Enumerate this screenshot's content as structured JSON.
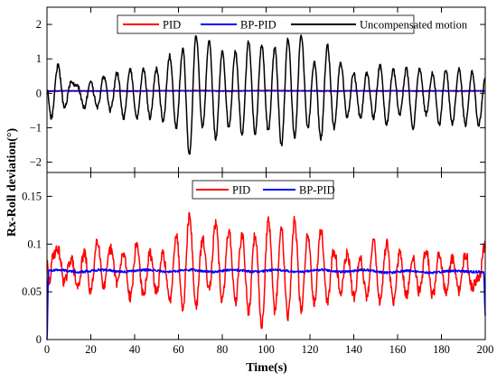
{
  "chart_data": [
    {
      "type": "line",
      "panel": "top",
      "xlim": [
        0,
        200
      ],
      "ylim": [
        -2.3,
        2.5
      ],
      "xticks": [
        0,
        20,
        40,
        60,
        80,
        100,
        120,
        140,
        160,
        180,
        200
      ],
      "yticks": [
        -2,
        -1,
        0,
        1,
        2
      ],
      "ytick_labels": [
        "−2",
        "−1",
        "0",
        "1",
        "2"
      ],
      "legend_position": "top-center",
      "grid": false,
      "series": [
        {
          "name": "PID",
          "color": "#ff0000",
          "x": [
            0,
            10,
            20,
            30,
            40,
            50,
            60,
            70,
            80,
            90,
            100,
            110,
            120,
            130,
            140,
            150,
            160,
            170,
            180,
            190,
            200
          ],
          "y": [
            0.06,
            0.07,
            0.06,
            0.07,
            0.06,
            0.07,
            0.07,
            0.08,
            0.06,
            0.07,
            0.08,
            0.07,
            0.07,
            0.06,
            0.07,
            0.06,
            0.07,
            0.06,
            0.07,
            0.06,
            0.07
          ]
        },
        {
          "name": "BP-PID",
          "color": "#0000ff",
          "x": [
            0,
            1,
            10,
            20,
            30,
            40,
            50,
            60,
            70,
            80,
            90,
            100,
            110,
            120,
            130,
            140,
            150,
            160,
            170,
            180,
            190,
            200
          ],
          "y": [
            0,
            0.07,
            0.072,
            0.071,
            0.072,
            0.071,
            0.072,
            0.071,
            0.072,
            0.071,
            0.072,
            0.071,
            0.072,
            0.071,
            0.072,
            0.071,
            0.072,
            0.071,
            0.072,
            0.071,
            0.072,
            0.072
          ]
        },
        {
          "name": "Uncompensated motion",
          "color": "#000000",
          "x": [
            0,
            2,
            5,
            8,
            11,
            14,
            17,
            20,
            23,
            26,
            29,
            32,
            35,
            38,
            41,
            44,
            47,
            50,
            53,
            56,
            59,
            62,
            65,
            68,
            71,
            74,
            77,
            80,
            83,
            86,
            89,
            92,
            95,
            98,
            101,
            104,
            107,
            110,
            113,
            116,
            119,
            122,
            125,
            128,
            131,
            134,
            137,
            140,
            143,
            146,
            149,
            152,
            155,
            158,
            161,
            164,
            167,
            170,
            173,
            176,
            179,
            182,
            185,
            188,
            191,
            194,
            197,
            200
          ],
          "y": [
            0.1,
            -0.7,
            0.8,
            -0.4,
            0.3,
            0.2,
            -0.4,
            0.3,
            -0.4,
            0.5,
            -0.5,
            0.6,
            -0.7,
            0.7,
            -0.7,
            0.7,
            -0.7,
            0.7,
            -0.8,
            1.1,
            -1.0,
            1.3,
            -1.8,
            1.7,
            -1.0,
            1.5,
            -1.3,
            1.2,
            -1.0,
            1.2,
            -1.2,
            1.5,
            -1.2,
            1.4,
            -1.1,
            1.3,
            -1.5,
            1.6,
            -1.3,
            1.7,
            -1.0,
            0.9,
            -1.3,
            1.4,
            -1.0,
            0.9,
            -0.7,
            0.6,
            -0.7,
            0.6,
            -0.7,
            0.8,
            -0.9,
            0.7,
            -0.6,
            0.7,
            -1.0,
            0.7,
            -0.6,
            0.6,
            -0.9,
            0.7,
            -0.9,
            0.7,
            -0.9,
            0.6,
            -0.9,
            0.4
          ]
        }
      ]
    },
    {
      "type": "line",
      "panel": "bottom",
      "xlim": [
        0,
        200
      ],
      "ylim": [
        0,
        0.175
      ],
      "xticks": [
        0,
        20,
        40,
        60,
        80,
        100,
        120,
        140,
        160,
        180,
        200
      ],
      "yticks": [
        0,
        0.05,
        0.1,
        0.15
      ],
      "ytick_labels": [
        "0",
        "0.05",
        "0.1",
        "0.15"
      ],
      "legend_position": "top-center",
      "grid": false,
      "series": [
        {
          "name": "PID",
          "color": "#ff0000",
          "x": [
            0,
            1,
            3,
            5,
            8,
            11,
            14,
            17,
            20,
            23,
            26,
            29,
            32,
            35,
            38,
            41,
            44,
            47,
            50,
            53,
            56,
            59,
            62,
            65,
            68,
            71,
            74,
            77,
            80,
            83,
            86,
            89,
            92,
            95,
            98,
            101,
            104,
            107,
            110,
            113,
            116,
            119,
            122,
            125,
            128,
            131,
            134,
            137,
            140,
            143,
            146,
            149,
            152,
            155,
            158,
            161,
            164,
            167,
            170,
            173,
            176,
            179,
            182,
            185,
            188,
            191,
            194,
            197,
            200
          ],
          "y": [
            0.08,
            0.06,
            0.09,
            0.095,
            0.06,
            0.085,
            0.055,
            0.09,
            0.05,
            0.105,
            0.055,
            0.095,
            0.06,
            0.09,
            0.045,
            0.1,
            0.045,
            0.09,
            0.05,
            0.09,
            0.04,
            0.11,
            0.035,
            0.13,
            0.035,
            0.105,
            0.055,
            0.12,
            0.04,
            0.115,
            0.04,
            0.11,
            0.03,
            0.11,
            0.015,
            0.125,
            0.03,
            0.115,
            0.025,
            0.125,
            0.03,
            0.11,
            0.04,
            0.115,
            0.04,
            0.095,
            0.05,
            0.09,
            0.045,
            0.085,
            0.045,
            0.105,
            0.04,
            0.1,
            0.04,
            0.09,
            0.045,
            0.085,
            0.05,
            0.095,
            0.045,
            0.09,
            0.05,
            0.085,
            0.05,
            0.09,
            0.055,
            0.065,
            0.1
          ]
        },
        {
          "name": "BP-PID",
          "color": "#0000ff",
          "x": [
            0,
            0.7,
            5,
            15,
            25,
            35,
            45,
            55,
            65,
            75,
            85,
            95,
            105,
            115,
            125,
            135,
            145,
            155,
            165,
            175,
            185,
            195,
            199.3,
            200
          ],
          "y": [
            0,
            0.072,
            0.073,
            0.071,
            0.073,
            0.071,
            0.073,
            0.071,
            0.073,
            0.071,
            0.073,
            0.071,
            0.073,
            0.071,
            0.073,
            0.071,
            0.073,
            0.07,
            0.072,
            0.07,
            0.072,
            0.071,
            0.071,
            0.025
          ]
        }
      ]
    }
  ],
  "shared": {
    "xlabel": "Time(s)",
    "ylabel": "Rx-Roll deviation(°)"
  }
}
